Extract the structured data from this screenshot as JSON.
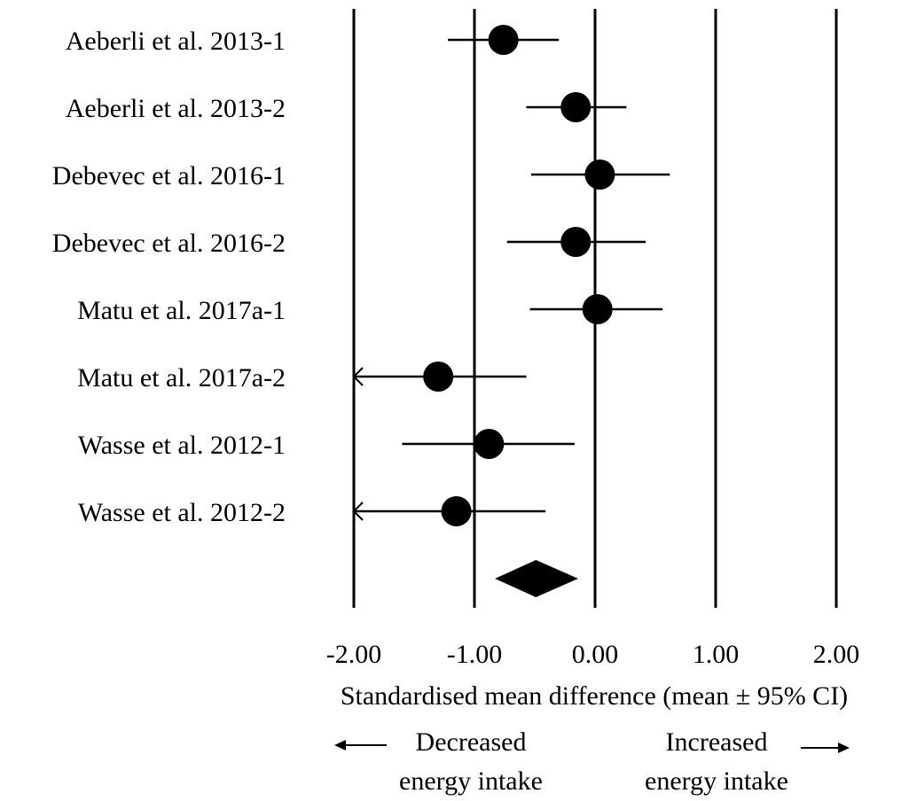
{
  "chart_data": {
    "type": "forest",
    "xlabel": "Standardised mean difference (mean ± 95% CI)",
    "xlim": [
      -2,
      2
    ],
    "xticks": [
      -2,
      -1,
      0,
      1,
      2
    ],
    "xtick_labels": [
      "-2.00",
      "-1.00",
      "0.00",
      "1.00",
      "2.00"
    ],
    "grid": true,
    "direction_left": [
      "Decreased",
      "energy intake"
    ],
    "direction_right": [
      "Increased",
      "energy intake"
    ],
    "studies": [
      {
        "label": "Aeberli et al. 2013-1",
        "smd": -0.76,
        "lower": -1.22,
        "upper": -0.3,
        "clipped_lower": false
      },
      {
        "label": "Aeberli et al. 2013-2",
        "smd": -0.16,
        "lower": -0.57,
        "upper": 0.26,
        "clipped_lower": false
      },
      {
        "label": "Debevec et al. 2016-1",
        "smd": 0.04,
        "lower": -0.53,
        "upper": 0.62,
        "clipped_lower": false
      },
      {
        "label": "Debevec et al. 2016-2",
        "smd": -0.16,
        "lower": -0.73,
        "upper": 0.42,
        "clipped_lower": false
      },
      {
        "label": "Matu et al. 2017a-1",
        "smd": 0.02,
        "lower": -0.54,
        "upper": 0.56,
        "clipped_lower": false
      },
      {
        "label": "Matu et al. 2017a-2",
        "smd": -1.3,
        "lower": -2.0,
        "upper": -0.57,
        "clipped_lower": true
      },
      {
        "label": "Wasse et al. 2012-1",
        "smd": -0.88,
        "lower": -1.6,
        "upper": -0.17,
        "clipped_lower": false
      },
      {
        "label": "Wasse et al. 2012-2",
        "smd": -1.15,
        "lower": -2.0,
        "upper": -0.41,
        "clipped_lower": true
      }
    ],
    "summary": {
      "smd": -0.49,
      "lower": -0.83,
      "upper": -0.14
    }
  }
}
